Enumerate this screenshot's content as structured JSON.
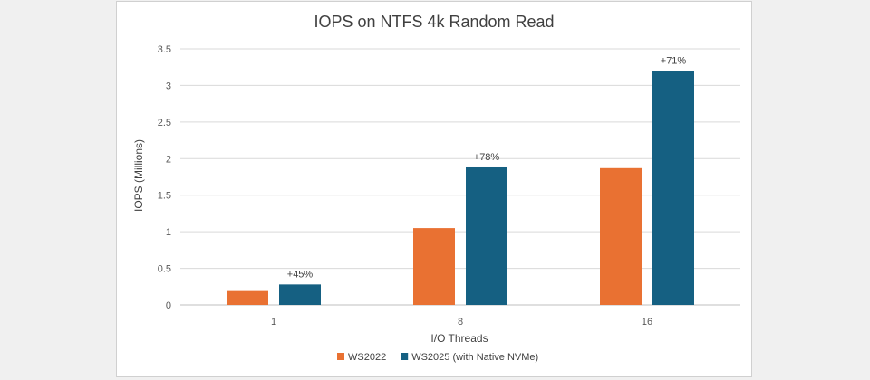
{
  "chart_data": {
    "type": "bar",
    "title": "IOPS on NTFS 4k Random Read",
    "xlabel": "I/O Threads",
    "ylabel": "IOPS (Millions)",
    "categories": [
      "1",
      "8",
      "16"
    ],
    "ylim": [
      0,
      3.5
    ],
    "yticks": [
      "0",
      "0.5",
      "1",
      "1.5",
      "2",
      "2.5",
      "3",
      "3.5"
    ],
    "grid": true,
    "legend_position": "bottom",
    "series": [
      {
        "name": "WS2022",
        "color": "#e97132",
        "values": [
          0.19,
          1.05,
          1.87
        ]
      },
      {
        "name": "WS2025 (with Native NVMe)",
        "color": "#156082",
        "values": [
          0.28,
          1.88,
          3.2
        ]
      }
    ],
    "annotations": [
      "+45%",
      "+78%",
      "+71%"
    ]
  }
}
